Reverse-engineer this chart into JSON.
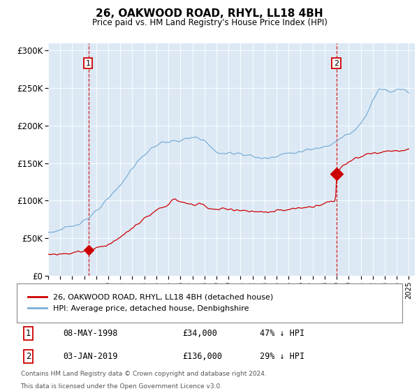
{
  "title": "26, OAKWOOD ROAD, RHYL, LL18 4BH",
  "subtitle": "Price paid vs. HM Land Registry's House Price Index (HPI)",
  "ylim": [
    0,
    310000
  ],
  "yticks": [
    0,
    50000,
    100000,
    150000,
    200000,
    250000,
    300000
  ],
  "ytick_labels": [
    "£0",
    "£50K",
    "£100K",
    "£150K",
    "£200K",
    "£250K",
    "£300K"
  ],
  "background_color": "#dce9f5",
  "line_color_hpi": "#7aaed6",
  "line_color_price": "#cc0000",
  "transaction1_year": 1998.37,
  "transaction1_price": 34000,
  "transaction2_year": 2019.01,
  "transaction2_price": 136000,
  "legend_label_price": "26, OAKWOOD ROAD, RHYL, LL18 4BH (detached house)",
  "legend_label_hpi": "HPI: Average price, detached house, Denbighshire",
  "footer_text1": "Contains HM Land Registry data © Crown copyright and database right 2024.",
  "footer_text2": "This data is licensed under the Open Government Licence v3.0.",
  "hpi_anchors_x": [
    1995,
    1995.5,
    1996,
    1996.5,
    1997,
    1997.5,
    1998,
    1998.5,
    1999,
    1999.5,
    2000,
    2000.5,
    2001,
    2001.5,
    2002,
    2002.5,
    2003,
    2003.5,
    2004,
    2004.5,
    2005,
    2005.5,
    2006,
    2006.5,
    2007,
    2007.3,
    2007.6,
    2007.9,
    2008,
    2008.3,
    2008.6,
    2009,
    2009.5,
    2010,
    2010.5,
    2011,
    2011.5,
    2012,
    2012.5,
    2013,
    2013.5,
    2014,
    2014.5,
    2015,
    2015.5,
    2016,
    2016.5,
    2017,
    2017.5,
    2018,
    2018.5,
    2019,
    2019.5,
    2020,
    2020.5,
    2021,
    2021.5,
    2022,
    2022.5,
    2023,
    2023.5,
    2024,
    2024.5,
    2025
  ],
  "hpi_anchors_y": [
    58000,
    59000,
    61000,
    63000,
    66000,
    70000,
    74000,
    79000,
    85000,
    93000,
    102000,
    112000,
    121000,
    132000,
    143000,
    153000,
    161000,
    168000,
    174000,
    178000,
    178000,
    179000,
    180000,
    182000,
    183000,
    184000,
    183000,
    182000,
    180000,
    175000,
    170000,
    165000,
    162000,
    163000,
    164000,
    163000,
    161000,
    159000,
    157000,
    156000,
    158000,
    160000,
    162000,
    163000,
    164000,
    165000,
    167000,
    168000,
    170000,
    173000,
    176000,
    180000,
    185000,
    188000,
    193000,
    202000,
    215000,
    235000,
    248000,
    248000,
    245000,
    248000,
    250000,
    245000
  ],
  "price_anchors_x": [
    1995,
    1995.5,
    1996,
    1996.5,
    1997,
    1997.5,
    1998,
    1998.37,
    1998.7,
    1999,
    1999.5,
    2000,
    2000.5,
    2001,
    2001.5,
    2002,
    2002.5,
    2003,
    2003.5,
    2004,
    2004.5,
    2005,
    2005.3,
    2005.6,
    2005.9,
    2006,
    2006.5,
    2007,
    2007.3,
    2007.6,
    2007.9,
    2008,
    2008.3,
    2008.6,
    2009,
    2009.5,
    2010,
    2010.5,
    2011,
    2011.5,
    2012,
    2012.5,
    2013,
    2013.5,
    2014,
    2014.5,
    2015,
    2015.5,
    2016,
    2016.5,
    2017,
    2017.5,
    2018,
    2018.3,
    2018.6,
    2018.9,
    2019.01,
    2019.3,
    2019.6,
    2020,
    2020.5,
    2021,
    2021.3,
    2021.6,
    2022,
    2022.5,
    2023,
    2023.3,
    2023.6,
    2024,
    2024.5,
    2025
  ],
  "price_anchors_y": [
    28000,
    28500,
    29000,
    29500,
    30500,
    32000,
    33000,
    34000,
    35500,
    37000,
    39000,
    42000,
    46000,
    51000,
    57000,
    63000,
    70000,
    76000,
    81000,
    86000,
    91000,
    96000,
    99000,
    101000,
    100000,
    99000,
    96000,
    94000,
    95000,
    96000,
    95000,
    93000,
    91000,
    89000,
    88000,
    88500,
    89000,
    88000,
    87000,
    86000,
    85000,
    84500,
    84000,
    85000,
    86000,
    87000,
    88000,
    89000,
    90000,
    91000,
    92000,
    94000,
    97000,
    98000,
    99000,
    100500,
    136000,
    143000,
    148000,
    152000,
    155000,
    158000,
    160000,
    162000,
    163000,
    164000,
    165000,
    166000,
    165000,
    166000,
    167000,
    168000
  ]
}
